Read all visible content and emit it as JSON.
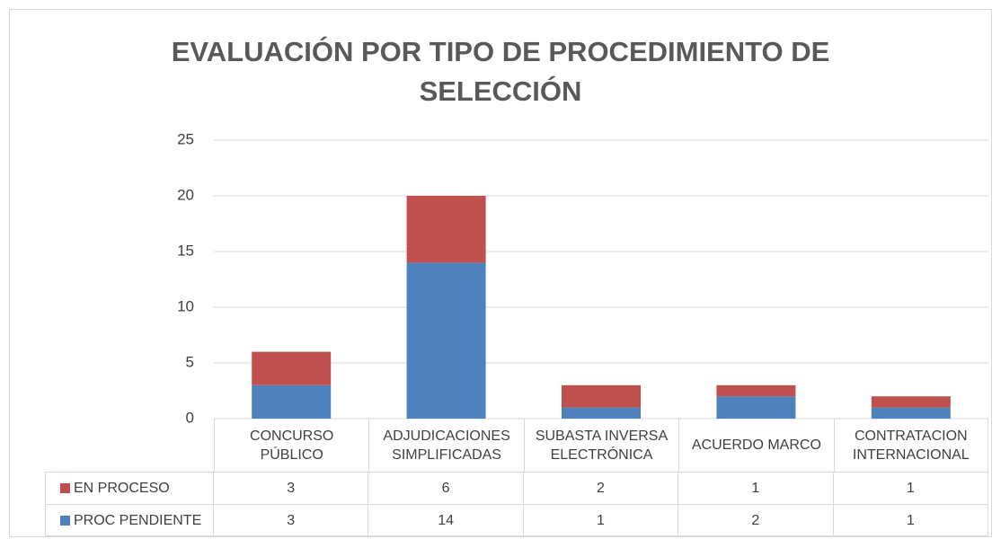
{
  "chart_data": {
    "type": "stacked_bar",
    "title": "EVALUACIÓN POR TIPO DE PROCEDIMIENTO DE SELECCIÓN",
    "categories": [
      "CONCURSO PÚBLICO",
      "ADJUDICACIONES SIMPLIFICADAS",
      "SUBASTA INVERSA ELECTRÓNICA",
      "ACUERDO MARCO",
      "CONTRATACION INTERNACIONAL"
    ],
    "series": [
      {
        "name": "EN PROCESO",
        "color": "#c0504d",
        "values": [
          3,
          6,
          2,
          1,
          1
        ]
      },
      {
        "name": "PROC PENDIENTE",
        "color": "#4f81bd",
        "values": [
          3,
          14,
          1,
          2,
          1
        ]
      }
    ],
    "ylim": [
      0,
      25
    ],
    "yticks": [
      0,
      5,
      10,
      15,
      20,
      25
    ],
    "grid": true
  }
}
